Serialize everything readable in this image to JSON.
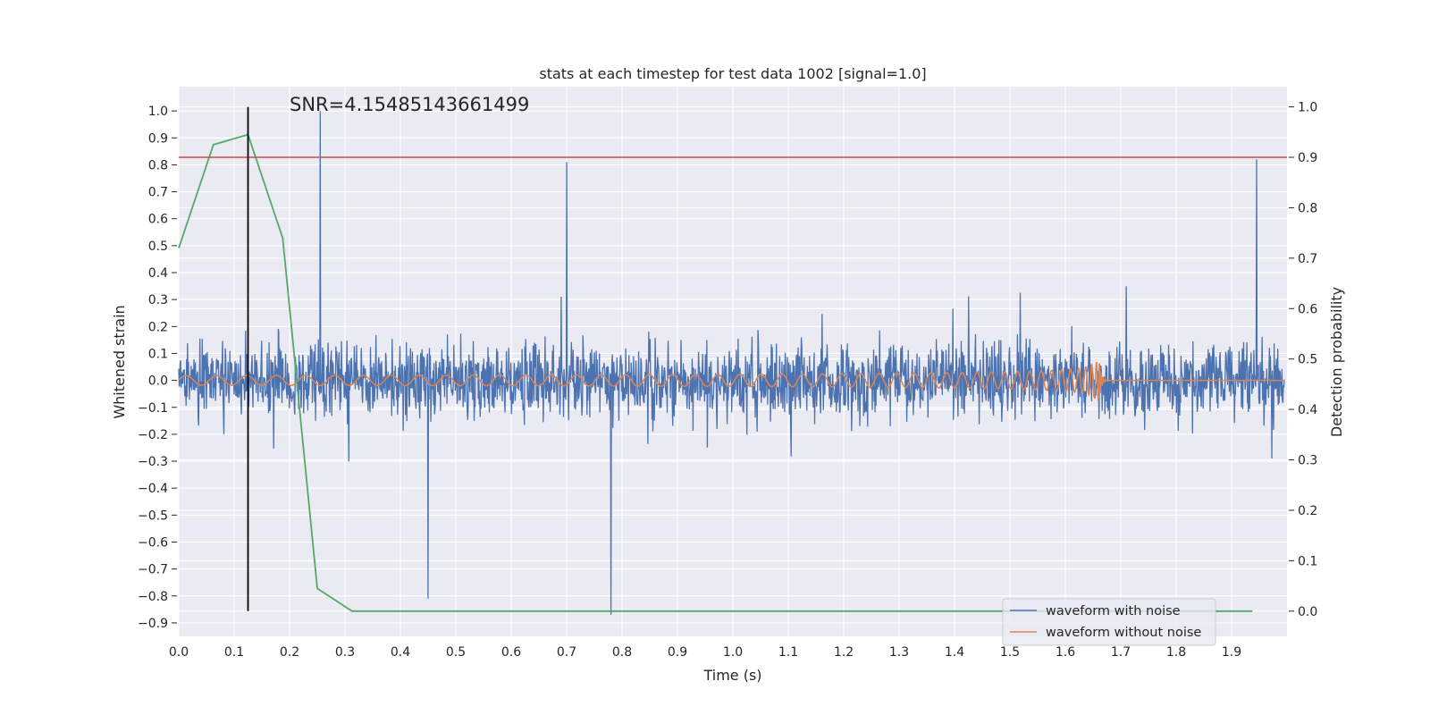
{
  "chart_data": {
    "type": "line",
    "title": "stats at each timestep for test data 1002 [signal=1.0]",
    "xlabel": "Time (s)",
    "ylabel": "Whitened strain",
    "y2label": "Detection probability",
    "xlim": [
      0.0,
      2.0
    ],
    "ylim": [
      -0.95,
      1.09
    ],
    "y2lim": [
      -0.05,
      1.04
    ],
    "x_ticks": [
      "0.0",
      "0.1",
      "0.2",
      "0.3",
      "0.4",
      "0.5",
      "0.6",
      "0.7",
      "0.8",
      "0.9",
      "1.0",
      "1.1",
      "1.2",
      "1.3",
      "1.4",
      "1.5",
      "1.6",
      "1.7",
      "1.8",
      "1.9"
    ],
    "y_ticks": [
      "1.0",
      "0.9",
      "0.8",
      "0.7",
      "0.6",
      "0.5",
      "0.4",
      "0.3",
      "0.2",
      "0.1",
      "0.0",
      "−0.1",
      "−0.2",
      "−0.3",
      "−0.4",
      "−0.5",
      "−0.6",
      "−0.7",
      "−0.8",
      "−0.9"
    ],
    "y2_ticks": [
      "1.0",
      "0.9",
      "0.8",
      "0.7",
      "0.6",
      "0.5",
      "0.4",
      "0.3",
      "0.2",
      "0.1",
      "0.0"
    ],
    "annotation": "SNR=4.15485143661499",
    "colors": {
      "noise": "#4c72b0",
      "clean": "#dd8452",
      "prob": "#55a868",
      "threshold": "#c44e52",
      "marker": "#000000",
      "plot_bg": "#eaeaf2",
      "grid": "#ffffff"
    },
    "series": [
      {
        "name": "waveform with noise",
        "axis": "left",
        "description": "dense noise-dominated strain, amplitude roughly -0.9 to 1.0",
        "notable_peaks": [
          {
            "x": 0.255,
            "y": 1.0
          },
          {
            "x": 0.7,
            "y": 0.81
          },
          {
            "x": 1.945,
            "y": 0.82
          },
          {
            "x": 0.78,
            "y": -0.87
          },
          {
            "x": 0.45,
            "y": -0.81
          }
        ]
      },
      {
        "name": "waveform without noise",
        "axis": "left",
        "description": "chirp signal with amplitude ~0.02 growing to ~0.15, merger near 1.66 s, flat after",
        "merger_time": 1.66
      },
      {
        "name": "detection probability",
        "axis": "right",
        "x": [
          0.0,
          0.0625,
          0.125,
          0.1875,
          0.25,
          0.3125,
          0.375,
          0.5,
          0.75,
          1.0,
          1.25,
          1.5,
          1.75,
          1.9375
        ],
        "values": [
          0.72,
          0.925,
          0.945,
          0.74,
          0.045,
          0.0,
          0.0,
          0.0,
          0.0,
          0.0,
          0.0,
          0.0,
          0.0,
          0.0
        ]
      }
    ],
    "threshold": {
      "axis": "right",
      "value": 0.9
    },
    "vertical_marker": {
      "x": 0.125,
      "y_from": 0.0,
      "y_to": 1.0
    },
    "legend": {
      "position": "bottom-right",
      "entries": [
        "waveform with noise",
        "waveform without noise"
      ]
    }
  }
}
